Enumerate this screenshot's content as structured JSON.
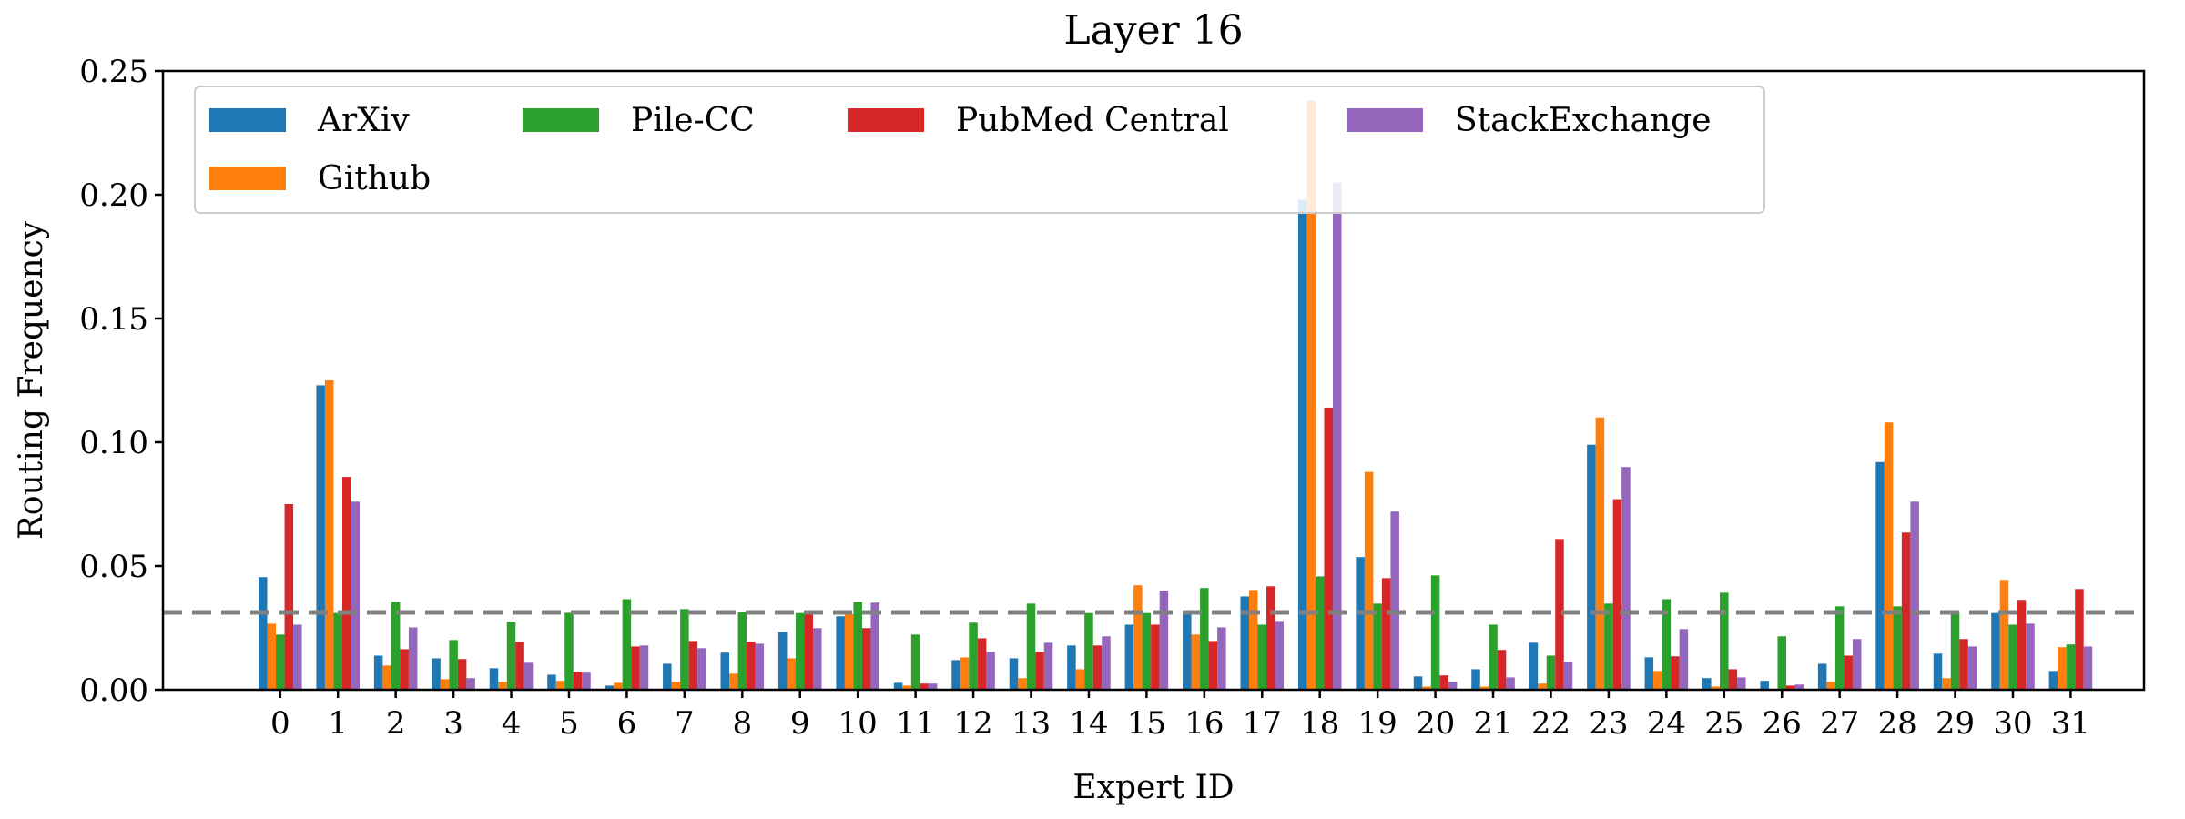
{
  "chart_data": {
    "type": "bar",
    "title": "Layer 16",
    "xlabel": "Expert ID",
    "ylabel": "Routing Frequency",
    "ylim": [
      0,
      0.25
    ],
    "yticks": [
      "0.00",
      "0.05",
      "0.10",
      "0.15",
      "0.20",
      "0.25"
    ],
    "ytick_values": [
      0,
      0.05,
      0.1,
      0.15,
      0.2,
      0.25
    ],
    "categories": [
      "0",
      "1",
      "2",
      "3",
      "4",
      "5",
      "6",
      "7",
      "8",
      "9",
      "10",
      "11",
      "12",
      "13",
      "14",
      "15",
      "16",
      "17",
      "18",
      "19",
      "20",
      "21",
      "22",
      "23",
      "24",
      "25",
      "26",
      "27",
      "28",
      "29",
      "30",
      "31"
    ],
    "reference_line": {
      "value": 0.03125,
      "style": "dashed",
      "color": "#808080"
    },
    "legend_position": "top-left",
    "series": [
      {
        "name": "ArXiv",
        "color": "#1f77b4",
        "values": [
          0.0455,
          0.123,
          0.0138,
          0.0127,
          0.0087,
          0.0061,
          0.0017,
          0.0105,
          0.015,
          0.0234,
          0.0297,
          0.0028,
          0.012,
          0.0127,
          0.0179,
          0.0263,
          0.0308,
          0.0377,
          0.198,
          0.0536,
          0.0054,
          0.0083,
          0.019,
          0.099,
          0.0131,
          0.0047,
          0.0036,
          0.0105,
          0.092,
          0.0146,
          0.031,
          0.0076
        ]
      },
      {
        "name": "Github",
        "color": "#ff7f0e",
        "values": [
          0.0267,
          0.125,
          0.0098,
          0.0043,
          0.0032,
          0.0036,
          0.0028,
          0.0032,
          0.0065,
          0.0127,
          0.0306,
          0.0017,
          0.0131,
          0.0047,
          0.0083,
          0.0422,
          0.0223,
          0.0403,
          0.238,
          0.088,
          0.0013,
          0.0013,
          0.0025,
          0.11,
          0.0076,
          0.0013,
          0.0002,
          0.0032,
          0.108,
          0.0047,
          0.0444,
          0.0172
        ]
      },
      {
        "name": "Pile-CC",
        "color": "#2ca02c",
        "values": [
          0.0223,
          0.031,
          0.0355,
          0.0201,
          0.0275,
          0.0311,
          0.0366,
          0.0326,
          0.0315,
          0.031,
          0.0355,
          0.0223,
          0.0271,
          0.0348,
          0.031,
          0.031,
          0.0411,
          0.0263,
          0.0458,
          0.0348,
          0.0462,
          0.0263,
          0.0138,
          0.0348,
          0.0366,
          0.0392,
          0.0216,
          0.0337,
          0.0337,
          0.0319,
          0.0263,
          0.0183
        ]
      },
      {
        "name": "PubMed Central",
        "color": "#d62728",
        "values": [
          0.075,
          0.086,
          0.0164,
          0.0124,
          0.0194,
          0.0072,
          0.0175,
          0.0197,
          0.0194,
          0.0311,
          0.0249,
          0.0025,
          0.0208,
          0.0153,
          0.0179,
          0.0263,
          0.0197,
          0.0418,
          0.114,
          0.0451,
          0.0058,
          0.0161,
          0.0609,
          0.077,
          0.0135,
          0.0083,
          0.0017,
          0.0138,
          0.0635,
          0.0205,
          0.0363,
          0.0407
        ]
      },
      {
        "name": "StackExchange",
        "color": "#9467bd",
        "values": [
          0.0263,
          0.076,
          0.0252,
          0.0047,
          0.0109,
          0.0069,
          0.0179,
          0.0168,
          0.0186,
          0.0249,
          0.0352,
          0.0025,
          0.0153,
          0.019,
          0.0216,
          0.04,
          0.0252,
          0.0278,
          0.205,
          0.072,
          0.0032,
          0.005,
          0.0113,
          0.09,
          0.0245,
          0.005,
          0.0021,
          0.0205,
          0.076,
          0.0175,
          0.0267,
          0.0175
        ]
      }
    ]
  }
}
